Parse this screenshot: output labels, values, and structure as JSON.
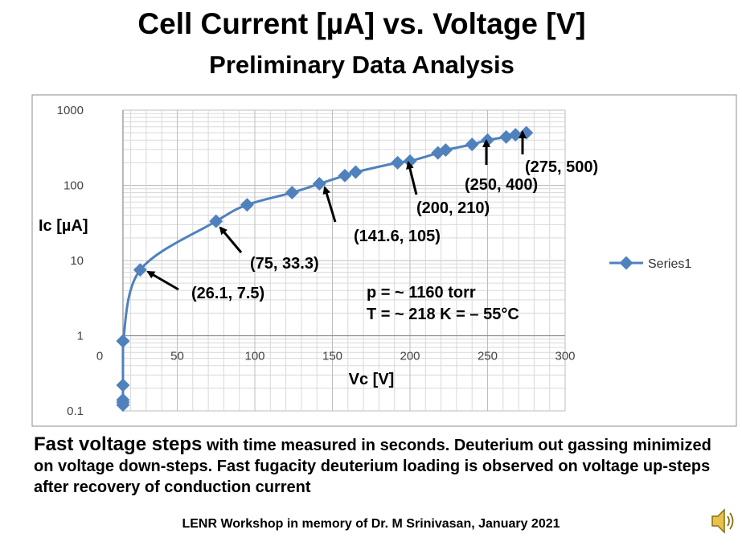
{
  "title": "Cell Current [µA] vs. Voltage [V]",
  "subtitle": "Preliminary Data Analysis",
  "chart_data": {
    "type": "scatter",
    "connected": true,
    "xlabel": "Vc [V]",
    "ylabel": "Ic [µA]",
    "xlim": [
      0,
      300
    ],
    "ylim": [
      0.1,
      1000
    ],
    "y_scale": "log",
    "x_ticks": [
      "0",
      "50",
      "100",
      "150",
      "200",
      "250",
      "300"
    ],
    "y_ticks": [
      "1000",
      "100",
      "10",
      "1",
      "0.1"
    ],
    "grid": true,
    "legend_position": "right",
    "series": [
      {
        "name": "Series1",
        "color": "#4f81bd",
        "x": [
          15,
          15,
          15,
          15,
          15,
          15,
          26.1,
          75,
          95,
          124,
          141.6,
          158,
          165,
          192,
          200,
          218,
          223,
          240,
          250,
          262,
          268,
          275
        ],
        "y": [
          0.12,
          0.13,
          0.14,
          0.22,
          0.85,
          0.85,
          7.5,
          33.3,
          55,
          80,
          105,
          135,
          150,
          200,
          210,
          270,
          295,
          350,
          400,
          440,
          470,
          500
        ]
      }
    ],
    "annotations": [
      {
        "text": "(26.1, 7.5)"
      },
      {
        "text": "(75, 33.3)"
      },
      {
        "text": "(141.6, 105)"
      },
      {
        "text": "(200, 210)"
      },
      {
        "text": "(250, 400)"
      },
      {
        "text": "(275, 500)"
      }
    ],
    "conditions": {
      "pressure": "p = ~ 1160 torr",
      "temperature": "T = ~ 218 K = – 55°C"
    }
  },
  "body": {
    "lead": "Fast voltage steps",
    "rest": " with time measured in seconds.  Deuterium out gassing minimized on voltage down-steps. Fast fugacity deuterium loading is observed on voltage up-steps after recovery of conduction current"
  },
  "footer": "LENR Workshop in memory of Dr. M Srinivasan, January 2021",
  "speaker_icon": "speaker-icon"
}
